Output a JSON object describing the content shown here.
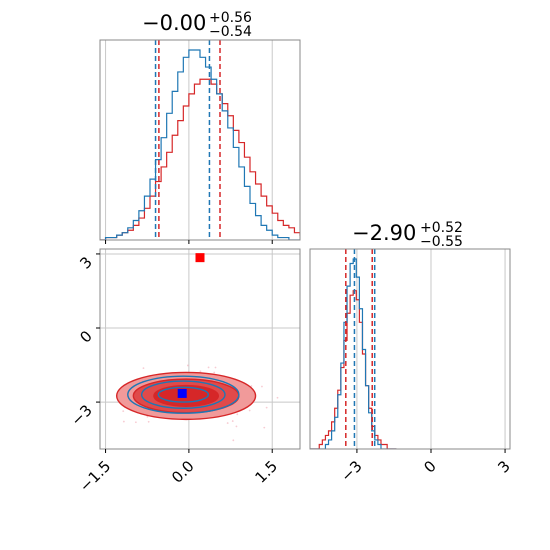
{
  "chart_data": {
    "type": "corner",
    "parameters": [
      {
        "title": {
          "main": "−0.00",
          "sup": "+0.56",
          "sub": "−0.54"
        },
        "range": [
          -1.6,
          2.0
        ],
        "ticks": [
          -1.5,
          0.0,
          1.5
        ],
        "tick_labels": [
          "−1.5",
          "0.0",
          "1.5"
        ],
        "truth_line": 0
      },
      {
        "title": {
          "main": "−2.90",
          "sup": "+0.52",
          "sub": "−0.55"
        },
        "range": [
          -4.9,
          3.2
        ],
        "ticks": [
          -3,
          0,
          3
        ],
        "tick_labels": [
          "−3",
          "0",
          "3"
        ],
        "truth_line": -3
      }
    ],
    "colors": {
      "red": "#d62728",
      "blue": "#1f77b4",
      "red_fill": "#f19a9a",
      "red_mid": "#e04a4a",
      "grid": "#c8c8c8",
      "axis": "#888888"
    },
    "series": [
      {
        "color": "red",
        "hist1": {
          "edges_start": -1.6,
          "bin_width": 0.1,
          "values": [
            0,
            1,
            1,
            2,
            3,
            4,
            6,
            9,
            13,
            18,
            24,
            30,
            36,
            43,
            49,
            55,
            60,
            64,
            66,
            66,
            64,
            60,
            56,
            51,
            45,
            40,
            34,
            28,
            23,
            18,
            14,
            11,
            8,
            6,
            5,
            3,
            2,
            1,
            1,
            0
          ]
        },
        "quantiles1": [
          -0.54,
          0.56
        ],
        "hist2": {
          "edges_start": -4.9,
          "bin_width": 0.125,
          "values": [
            0,
            0,
            0,
            1,
            2,
            3,
            4,
            6,
            9,
            13,
            18,
            24,
            30,
            34,
            35,
            33,
            28,
            21,
            14,
            9,
            5,
            3,
            2,
            1,
            1,
            0,
            0,
            0
          ]
        },
        "quantiles2": [
          -3.45,
          -2.38
        ],
        "marker": {
          "x": 0.2,
          "y": 2.85
        }
      },
      {
        "color": "blue",
        "hist1": {
          "edges_start": -1.6,
          "bin_width": 0.1,
          "values": [
            0,
            1,
            1,
            2,
            3,
            5,
            8,
            12,
            18,
            25,
            33,
            42,
            52,
            61,
            69,
            75,
            78,
            78,
            75,
            71,
            66,
            60,
            53,
            46,
            38,
            30,
            22,
            15,
            10,
            6,
            4,
            2,
            1,
            1,
            0,
            0,
            0,
            0,
            0,
            0
          ]
        },
        "quantiles1": [
          -0.6,
          0.37
        ],
        "hist2": {
          "edges_start": -4.9,
          "bin_width": 0.125,
          "values": [
            0,
            0,
            0,
            0,
            0,
            1,
            2,
            4,
            7,
            12,
            19,
            28,
            36,
            41,
            42,
            38,
            31,
            22,
            14,
            8,
            4,
            2,
            1,
            0,
            0,
            0,
            0,
            0
          ]
        },
        "quantiles2": [
          -3.1,
          -2.28
        ],
        "marker": {
          "x": -0.12,
          "y": -2.65
        }
      }
    ],
    "contours": {
      "red": [
        {
          "cx": -0.05,
          "cy": -2.75,
          "rx": 1.25,
          "ry": 0.95
        },
        {
          "cx": -0.05,
          "cy": -2.75,
          "rx": 0.95,
          "ry": 0.68
        },
        {
          "cx": -0.05,
          "cy": -2.75,
          "rx": 0.58,
          "ry": 0.42
        }
      ],
      "blue": [
        {
          "cx": -0.1,
          "cy": -2.7,
          "rx": 1.0,
          "ry": 0.75
        },
        {
          "cx": -0.1,
          "cy": -2.7,
          "rx": 0.75,
          "ry": 0.55
        },
        {
          "cx": -0.1,
          "cy": -2.7,
          "rx": 0.45,
          "ry": 0.3
        }
      ]
    }
  }
}
